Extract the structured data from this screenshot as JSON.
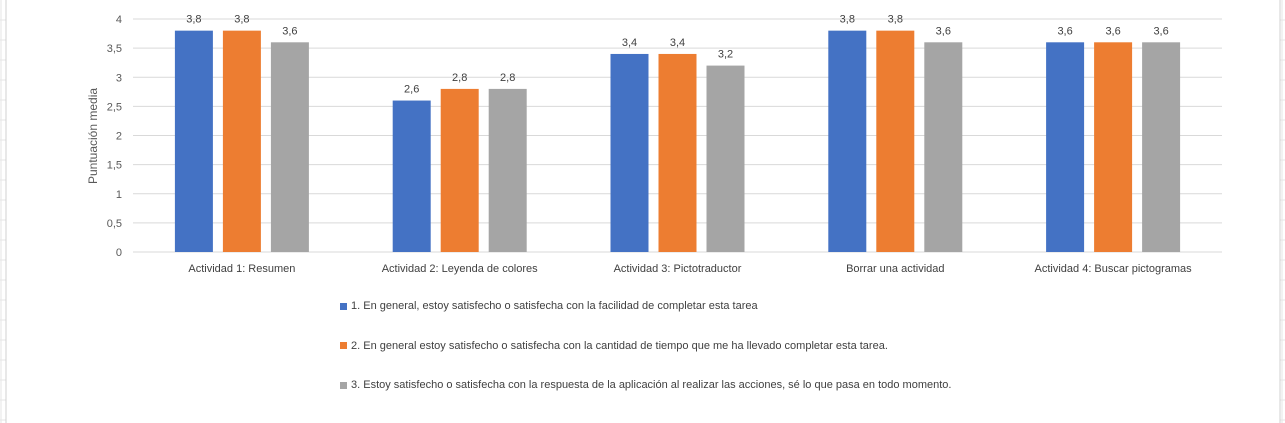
{
  "colors": {
    "background": "#ffffff",
    "gridline": "#d9d9d9",
    "sheet_grid": "#e6e6e6",
    "axis_text": "#595959"
  },
  "chart_data": {
    "type": "bar",
    "title": "",
    "xlabel": "",
    "ylabel": "Puntuación media",
    "ylim": [
      0,
      4
    ],
    "yticks": [
      "0",
      "0,5",
      "1",
      "1,5",
      "2",
      "2,5",
      "3",
      "3,5",
      "4"
    ],
    "grid": true,
    "legend_position": "bottom",
    "categories": [
      "Actividad 1: Resumen",
      "Actividad  2: Leyenda de colores",
      "Actividad 3: Pictotraductor",
      "Borrar una actividad",
      "Actividad 4: Buscar pictogramas"
    ],
    "series": [
      {
        "name": "1. En general, estoy satisfecho o satisfecha con la facilidad de completar esta tarea",
        "color": "#4472c4",
        "values": [
          3.8,
          2.6,
          3.4,
          3.8,
          3.6
        ],
        "labels": [
          "3,8",
          "2,6",
          "3,4",
          "3,8",
          "3,6"
        ]
      },
      {
        "name": "2. En general estoy satisfecho o satisfecha con la cantidad de tiempo que me ha llevado completar esta tarea.",
        "color": "#ed7d31",
        "values": [
          3.8,
          2.8,
          3.4,
          3.8,
          3.6
        ],
        "labels": [
          "3,8",
          "2,8",
          "3,4",
          "3,8",
          "3,6"
        ]
      },
      {
        "name": "3. Estoy satisfecho o satisfecha con la respuesta de la aplicación al realizar las acciones, sé lo que pasa en todo momento.",
        "color": "#a5a5a5",
        "values": [
          3.6,
          2.8,
          3.2,
          3.6,
          3.6
        ],
        "labels": [
          "3,6",
          "2,8",
          "3,2",
          "3,6",
          "3,6"
        ]
      }
    ]
  }
}
